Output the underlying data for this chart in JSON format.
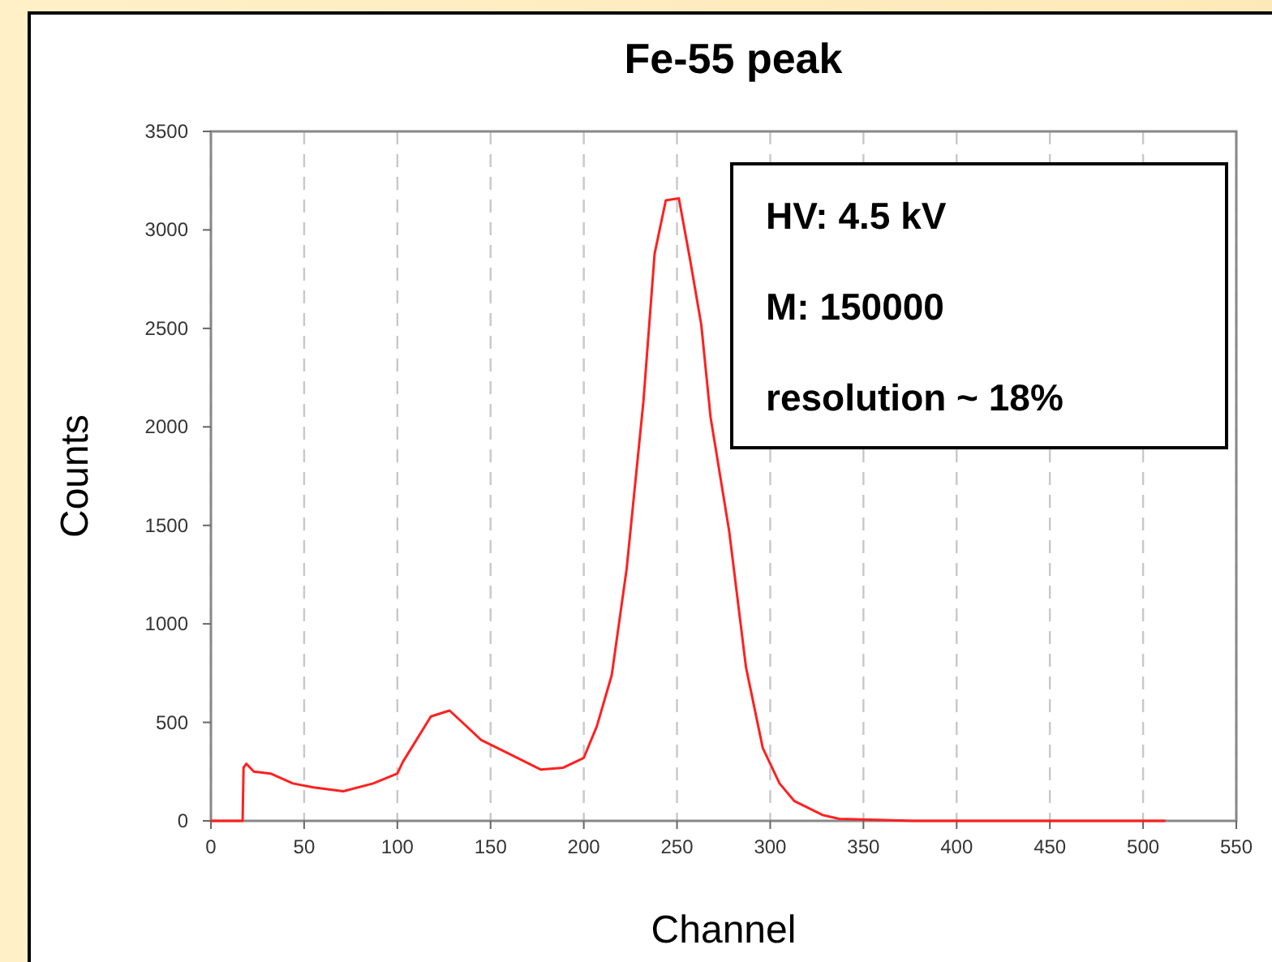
{
  "chart_data": {
    "type": "line",
    "title": "Fe-55 peak",
    "xlabel": "Channel",
    "ylabel": "Counts",
    "annotations": [
      "HV: 4.5 kV",
      "M: 150000",
      "resolution ~ 18%"
    ],
    "xlim": [
      0,
      550
    ],
    "xticks": [
      0,
      50,
      100,
      150,
      200,
      250,
      300,
      350,
      400,
      450,
      500,
      550
    ],
    "ylim": [
      0,
      3500
    ],
    "yticks": [
      0,
      500,
      1000,
      1500,
      2000,
      2500,
      3000,
      3500
    ],
    "grid": "x",
    "marker": "none",
    "line_style": "solid",
    "series": [
      {
        "color": "#ff2020",
        "x": [
          0,
          17,
          17.5,
          19,
          23,
          32,
          44,
          55,
          71,
          87,
          100,
          103,
          118,
          128,
          136,
          145,
          160,
          177,
          189,
          200,
          207,
          215,
          223,
          232,
          238,
          244,
          251,
          257,
          263,
          268,
          278,
          287,
          296,
          305,
          313,
          328,
          337,
          377,
          512
        ],
        "values": [
          0,
          0,
          270,
          290,
          250,
          240,
          190,
          170,
          150,
          190,
          240,
          300,
          530,
          560,
          490,
          410,
          340,
          260,
          270,
          320,
          480,
          740,
          1280,
          2130,
          2880,
          3150,
          3160,
          2850,
          2520,
          2050,
          1470,
          780,
          370,
          190,
          100,
          30,
          10,
          0,
          0
        ]
      }
    ]
  }
}
